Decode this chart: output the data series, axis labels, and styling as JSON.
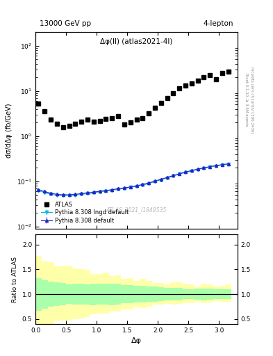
{
  "title_left": "13000 GeV pp",
  "title_right": "4-lepton",
  "plot_label": "Δφ(ll) (atlas2021-4l)",
  "watermark": "ATLAS_2021_I1849535",
  "ylabel_main": "dσ/dΔφ (fb/GeV)",
  "ylabel_ratio": "Ratio to ATLAS",
  "xlabel": "Δφ",
  "right_label_top": "Rivet 3.1.10, ≥ 3.5M events",
  "right_label_bottom": "mcplots.cern.ch [arXiv:1306.3436]",
  "atlas_x": [
    0.05,
    0.15,
    0.25,
    0.35,
    0.45,
    0.55,
    0.65,
    0.75,
    0.85,
    0.95,
    1.05,
    1.15,
    1.25,
    1.35,
    1.45,
    1.55,
    1.65,
    1.75,
    1.85,
    1.95,
    2.05,
    2.15,
    2.25,
    2.35,
    2.45,
    2.55,
    2.65,
    2.75,
    2.85,
    2.95,
    3.05,
    3.15
  ],
  "atlas_y": [
    5.2,
    3.5,
    2.3,
    1.9,
    1.6,
    1.7,
    1.9,
    2.1,
    2.3,
    2.1,
    2.2,
    2.4,
    2.5,
    2.8,
    1.8,
    2.0,
    2.3,
    2.5,
    3.2,
    4.2,
    5.5,
    7.0,
    9.0,
    11.5,
    13.0,
    14.5,
    17.0,
    20.0,
    22.0,
    18.0,
    25.0,
    27.0
  ],
  "py8_default_x": [
    0.05,
    0.15,
    0.25,
    0.35,
    0.45,
    0.55,
    0.65,
    0.75,
    0.85,
    0.95,
    1.05,
    1.15,
    1.25,
    1.35,
    1.45,
    1.55,
    1.65,
    1.75,
    1.85,
    1.95,
    2.05,
    2.15,
    2.25,
    2.35,
    2.45,
    2.55,
    2.65,
    2.75,
    2.85,
    2.95,
    3.05,
    3.15
  ],
  "py8_default_y": [
    0.065,
    0.06,
    0.055,
    0.052,
    0.051,
    0.051,
    0.052,
    0.054,
    0.056,
    0.058,
    0.061,
    0.063,
    0.066,
    0.069,
    0.072,
    0.076,
    0.08,
    0.086,
    0.093,
    0.102,
    0.112,
    0.123,
    0.135,
    0.148,
    0.162,
    0.175,
    0.188,
    0.2,
    0.213,
    0.225,
    0.236,
    0.245
  ],
  "py8_default_err": [
    0.003,
    0.003,
    0.002,
    0.002,
    0.002,
    0.002,
    0.002,
    0.002,
    0.002,
    0.002,
    0.002,
    0.002,
    0.002,
    0.002,
    0.002,
    0.002,
    0.002,
    0.002,
    0.003,
    0.003,
    0.003,
    0.004,
    0.004,
    0.004,
    0.004,
    0.005,
    0.005,
    0.005,
    0.006,
    0.006,
    0.006,
    0.006
  ],
  "py8_lngdef_x": [
    0.05,
    0.15,
    0.25,
    0.35,
    0.45,
    0.55,
    0.65,
    0.75,
    0.85,
    0.95,
    1.05,
    1.15,
    1.25,
    1.35,
    1.45,
    1.55,
    1.65,
    1.75,
    1.85,
    1.95,
    2.05,
    2.15,
    2.25,
    2.35,
    2.45,
    2.55,
    2.65,
    2.75,
    2.85,
    2.95,
    3.05,
    3.15
  ],
  "py8_lngdef_y": [
    0.063,
    0.057,
    0.052,
    0.049,
    0.049,
    0.049,
    0.05,
    0.052,
    0.054,
    0.056,
    0.059,
    0.061,
    0.064,
    0.067,
    0.07,
    0.074,
    0.078,
    0.083,
    0.09,
    0.099,
    0.109,
    0.12,
    0.132,
    0.145,
    0.158,
    0.171,
    0.184,
    0.196,
    0.208,
    0.22,
    0.23,
    0.24
  ],
  "py8_lngdef_err": [
    0.003,
    0.003,
    0.002,
    0.002,
    0.002,
    0.002,
    0.002,
    0.002,
    0.002,
    0.002,
    0.002,
    0.002,
    0.002,
    0.002,
    0.002,
    0.002,
    0.002,
    0.002,
    0.003,
    0.003,
    0.003,
    0.004,
    0.004,
    0.004,
    0.004,
    0.005,
    0.005,
    0.005,
    0.006,
    0.006,
    0.006,
    0.006
  ],
  "ratio_green_upper": [
    1.32,
    1.28,
    1.25,
    1.22,
    1.2,
    1.2,
    1.2,
    1.2,
    1.2,
    1.2,
    1.2,
    1.2,
    1.2,
    1.2,
    1.18,
    1.17,
    1.16,
    1.15,
    1.14,
    1.13,
    1.12,
    1.12,
    1.11,
    1.11,
    1.1,
    1.1,
    1.1,
    1.1,
    1.1,
    1.1,
    1.09,
    1.09
  ],
  "ratio_green_lower": [
    0.68,
    0.72,
    0.75,
    0.78,
    0.8,
    0.8,
    0.8,
    0.8,
    0.8,
    0.8,
    0.8,
    0.8,
    0.8,
    0.8,
    0.82,
    0.83,
    0.84,
    0.85,
    0.86,
    0.87,
    0.88,
    0.88,
    0.89,
    0.89,
    0.9,
    0.9,
    0.9,
    0.9,
    0.9,
    0.9,
    0.91,
    0.91
  ],
  "ratio_yellow_upper_base": [
    1.72,
    1.65,
    1.58,
    1.53,
    1.5,
    1.5,
    1.48,
    1.46,
    1.43,
    1.4,
    1.38,
    1.36,
    1.34,
    1.33,
    1.3,
    1.28,
    1.26,
    1.24,
    1.22,
    1.2,
    1.19,
    1.18,
    1.17,
    1.17,
    1.16,
    1.15,
    1.15,
    1.14,
    1.14,
    1.13,
    1.13,
    1.12
  ],
  "ratio_yellow_lower_base": [
    0.28,
    0.35,
    0.42,
    0.47,
    0.5,
    0.5,
    0.52,
    0.54,
    0.57,
    0.6,
    0.62,
    0.64,
    0.66,
    0.67,
    0.7,
    0.72,
    0.74,
    0.76,
    0.78,
    0.8,
    0.81,
    0.82,
    0.83,
    0.83,
    0.84,
    0.85,
    0.85,
    0.86,
    0.86,
    0.87,
    0.87,
    0.88
  ],
  "atlas_color": "#000000",
  "py8_default_color": "#2222cc",
  "py8_lngdef_color": "#00bbdd",
  "green_band_color": "#aaffaa",
  "yellow_band_color": "#ffffaa",
  "xlim": [
    0,
    3.3
  ],
  "ylim_main": [
    0.009,
    200
  ],
  "ylim_ratio": [
    0.4,
    2.2
  ],
  "ratio_yticks": [
    0.5,
    1.0,
    1.5,
    2.0
  ]
}
